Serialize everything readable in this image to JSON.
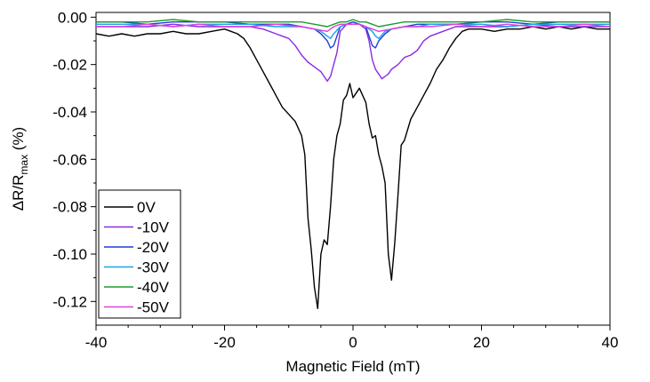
{
  "chart_data": {
    "type": "line",
    "xlabel": "Magnetic Field (mT)",
    "ylabel": {
      "main": "ΔR/R",
      "sub": "max",
      "unit": " (%)"
    },
    "xlim": [
      -40,
      40
    ],
    "ylim": [
      -0.13,
      0.002
    ],
    "xticks": [
      -40,
      -20,
      0,
      20,
      40
    ],
    "xtick_labels": [
      "-40",
      "-20",
      "0",
      "20",
      "40"
    ],
    "yticks": [
      0,
      -0.02,
      -0.04,
      -0.06,
      -0.08,
      -0.1,
      -0.12
    ],
    "ytick_labels": [
      "0.00",
      "-0.02",
      "-0.04",
      "-0.06",
      "-0.08",
      "-0.10",
      "-0.12"
    ],
    "grid": false,
    "legend_position": "bottom-left",
    "series": [
      {
        "name": "0V",
        "color": "#000000",
        "x": [
          -40,
          -38,
          -36,
          -34,
          -32,
          -30,
          -28,
          -26,
          -24,
          -22,
          -20,
          -19,
          -18,
          -17,
          -16,
          -15,
          -14,
          -13,
          -12,
          -11,
          -10,
          -9,
          -8,
          -7.5,
          -7,
          -6.5,
          -6,
          -5.5,
          -5,
          -4.5,
          -4,
          -3.5,
          -3,
          -2.5,
          -2,
          -1.5,
          -1,
          -0.5,
          0,
          0.5,
          1,
          1.5,
          2,
          2.5,
          3,
          3.5,
          4,
          4.5,
          5,
          5.5,
          6,
          6.5,
          7,
          7.5,
          8,
          9,
          10,
          11,
          12,
          13,
          14,
          15,
          16,
          17,
          18,
          20,
          22,
          24,
          26,
          28,
          30,
          32,
          34,
          36,
          38,
          40
        ],
        "y": [
          -0.007,
          -0.008,
          -0.007,
          -0.008,
          -0.007,
          -0.007,
          -0.006,
          -0.007,
          -0.007,
          -0.006,
          -0.005,
          -0.006,
          -0.007,
          -0.009,
          -0.013,
          -0.018,
          -0.023,
          -0.028,
          -0.033,
          -0.038,
          -0.041,
          -0.044,
          -0.05,
          -0.058,
          -0.085,
          -0.098,
          -0.114,
          -0.123,
          -0.1,
          -0.094,
          -0.096,
          -0.08,
          -0.06,
          -0.05,
          -0.045,
          -0.035,
          -0.033,
          -0.028,
          -0.034,
          -0.032,
          -0.03,
          -0.033,
          -0.036,
          -0.045,
          -0.051,
          -0.05,
          -0.058,
          -0.063,
          -0.07,
          -0.1,
          -0.111,
          -0.095,
          -0.075,
          -0.054,
          -0.052,
          -0.043,
          -0.038,
          -0.033,
          -0.028,
          -0.022,
          -0.018,
          -0.013,
          -0.009,
          -0.006,
          -0.005,
          -0.005,
          -0.006,
          -0.005,
          -0.005,
          -0.004,
          -0.005,
          -0.004,
          -0.005,
          -0.004,
          -0.005,
          -0.005
        ]
      },
      {
        "name": "-10V",
        "color": "#8a2be2",
        "x": [
          -40,
          -36,
          -32,
          -28,
          -24,
          -20,
          -16,
          -14,
          -12,
          -11,
          -10,
          -9,
          -8,
          -7,
          -6,
          -5,
          -4.5,
          -4,
          -3.5,
          -3,
          -2.5,
          -2,
          -1,
          0,
          1,
          2,
          2.5,
          3,
          3.5,
          4,
          4.5,
          5,
          5.5,
          6,
          7,
          8,
          9,
          10,
          11,
          12,
          14,
          16,
          20,
          24,
          28,
          32,
          36,
          40
        ],
        "y": [
          -0.004,
          -0.004,
          -0.004,
          -0.003,
          -0.004,
          -0.004,
          -0.004,
          -0.005,
          -0.007,
          -0.008,
          -0.009,
          -0.012,
          -0.016,
          -0.019,
          -0.021,
          -0.023,
          -0.025,
          -0.027,
          -0.025,
          -0.02,
          -0.015,
          -0.006,
          -0.003,
          -0.003,
          -0.003,
          -0.005,
          -0.01,
          -0.018,
          -0.022,
          -0.024,
          -0.026,
          -0.025,
          -0.024,
          -0.022,
          -0.02,
          -0.017,
          -0.016,
          -0.014,
          -0.01,
          -0.008,
          -0.006,
          -0.004,
          -0.004,
          -0.004,
          -0.003,
          -0.004,
          -0.004,
          -0.004
        ]
      },
      {
        "name": "-20V",
        "color": "#1f3fd6",
        "x": [
          -40,
          -36,
          -32,
          -28,
          -24,
          -20,
          -16,
          -12,
          -10,
          -8,
          -6,
          -5,
          -4,
          -3.5,
          -3,
          -2.5,
          -2,
          -1,
          0,
          1,
          2,
          2.5,
          3,
          3.5,
          4,
          5,
          6,
          8,
          10,
          12,
          16,
          20,
          24,
          28,
          32,
          36,
          40
        ],
        "y": [
          -0.002,
          -0.002,
          -0.003,
          -0.002,
          -0.002,
          -0.002,
          -0.003,
          -0.003,
          -0.003,
          -0.004,
          -0.005,
          -0.007,
          -0.01,
          -0.013,
          -0.012,
          -0.008,
          -0.004,
          -0.003,
          -0.002,
          -0.003,
          -0.004,
          -0.008,
          -0.012,
          -0.013,
          -0.01,
          -0.007,
          -0.005,
          -0.004,
          -0.003,
          -0.003,
          -0.003,
          -0.002,
          -0.002,
          -0.003,
          -0.002,
          -0.002,
          -0.002
        ]
      },
      {
        "name": "-30V",
        "color": "#1aa3e8",
        "x": [
          -40,
          -36,
          -32,
          -28,
          -24,
          -20,
          -16,
          -12,
          -10,
          -8,
          -6,
          -5,
          -4,
          -3.5,
          -3,
          -2,
          -1,
          0,
          1,
          2,
          3,
          3.5,
          4,
          5,
          6,
          8,
          10,
          12,
          16,
          20,
          24,
          28,
          32,
          36,
          40
        ],
        "y": [
          -0.003,
          -0.003,
          -0.003,
          -0.004,
          -0.003,
          -0.003,
          -0.003,
          -0.004,
          -0.004,
          -0.004,
          -0.005,
          -0.006,
          -0.008,
          -0.009,
          -0.007,
          -0.004,
          -0.003,
          -0.003,
          -0.003,
          -0.004,
          -0.006,
          -0.008,
          -0.009,
          -0.006,
          -0.005,
          -0.004,
          -0.004,
          -0.003,
          -0.003,
          -0.003,
          -0.004,
          -0.003,
          -0.003,
          -0.003,
          -0.003
        ]
      },
      {
        "name": "-40V",
        "color": "#1a9e2b",
        "x": [
          -40,
          -36,
          -32,
          -28,
          -24,
          -20,
          -16,
          -12,
          -8,
          -6,
          -4,
          -3,
          -2,
          -1,
          0,
          1,
          2,
          3,
          4,
          6,
          8,
          12,
          16,
          20,
          24,
          28,
          32,
          36,
          40
        ],
        "y": [
          -0.002,
          -0.002,
          -0.002,
          -0.001,
          -0.002,
          -0.002,
          -0.002,
          -0.002,
          -0.002,
          -0.003,
          -0.004,
          -0.003,
          -0.002,
          -0.002,
          -0.001,
          -0.002,
          -0.002,
          -0.003,
          -0.004,
          -0.003,
          -0.002,
          -0.002,
          -0.002,
          -0.002,
          -0.001,
          -0.002,
          -0.002,
          -0.002,
          -0.002
        ]
      },
      {
        "name": "-50V",
        "color": "#e040e0",
        "x": [
          -40,
          -36,
          -32,
          -28,
          -24,
          -20,
          -16,
          -12,
          -8,
          -6,
          -4,
          -3,
          -2,
          -1,
          0,
          1,
          2,
          3,
          4,
          6,
          8,
          12,
          16,
          20,
          24,
          28,
          32,
          36,
          40
        ],
        "y": [
          -0.004,
          -0.004,
          -0.003,
          -0.004,
          -0.003,
          -0.004,
          -0.004,
          -0.003,
          -0.004,
          -0.005,
          -0.006,
          -0.004,
          -0.003,
          -0.003,
          -0.003,
          -0.003,
          -0.004,
          -0.005,
          -0.006,
          -0.005,
          -0.004,
          -0.004,
          -0.003,
          -0.004,
          -0.003,
          -0.004,
          -0.004,
          -0.003,
          -0.004
        ]
      }
    ]
  }
}
